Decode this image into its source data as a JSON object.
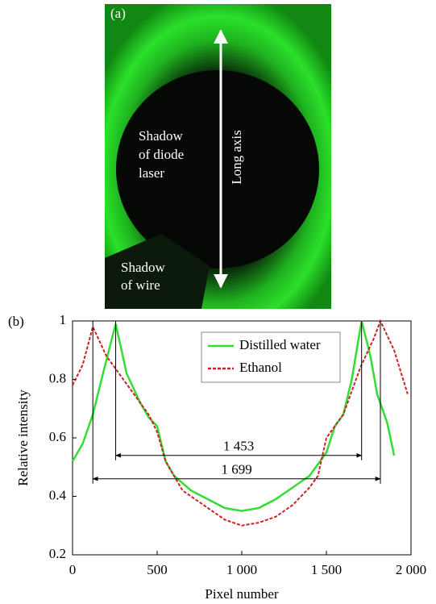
{
  "panel_a": {
    "label": "(a)",
    "laser_shadow": [
      "Shadow",
      "of diode",
      "laser"
    ],
    "axis_label": "Long axis",
    "wire_shadow": [
      "Shadow",
      "of wire"
    ]
  },
  "chart_data": {
    "type": "line",
    "label": "(b)",
    "x_label": "Pixel number",
    "y_label": "Relative intensity",
    "xlim": [
      0,
      2000
    ],
    "ylim": [
      0.2,
      1
    ],
    "xticks": [
      0,
      500,
      {
        "value": 1000,
        "label": "1 000"
      },
      {
        "value": 1500,
        "label": "1 500"
      },
      {
        "value": 2000,
        "label": "2 000"
      }
    ],
    "yticks": [
      0.2,
      0.4,
      0.6,
      0.8,
      1
    ],
    "grid": false,
    "legend": "upper-right",
    "series": [
      {
        "name": "Distilled water",
        "color": "#33dd33",
        "dash": false,
        "x": [
          0,
          60,
          120,
          180,
          255,
          320,
          400,
          450,
          500,
          550,
          600,
          700,
          800,
          900,
          1000,
          1100,
          1200,
          1300,
          1400,
          1500,
          1550,
          1600,
          1650,
          1708,
          1760,
          1800,
          1860,
          1900
        ],
        "values": [
          0.52,
          0.58,
          0.68,
          0.82,
          0.99,
          0.82,
          0.72,
          0.67,
          0.64,
          0.52,
          0.47,
          0.42,
          0.39,
          0.36,
          0.35,
          0.36,
          0.39,
          0.43,
          0.47,
          0.55,
          0.64,
          0.68,
          0.8,
          1.0,
          0.88,
          0.75,
          0.65,
          0.54
        ]
      },
      {
        "name": "Ethanol",
        "color": "#cc2222",
        "dash": true,
        "x": [
          0,
          60,
          120,
          200,
          300,
          400,
          450,
          500,
          550,
          650,
          800,
          900,
          1000,
          1100,
          1200,
          1300,
          1400,
          1450,
          1500,
          1600,
          1700,
          1780,
          1819,
          1900,
          1980
        ],
        "values": [
          0.78,
          0.85,
          0.98,
          0.88,
          0.8,
          0.72,
          0.68,
          0.62,
          0.52,
          0.42,
          0.36,
          0.32,
          0.3,
          0.31,
          0.33,
          0.37,
          0.43,
          0.47,
          0.6,
          0.68,
          0.84,
          0.94,
          1.0,
          0.9,
          0.75
        ]
      }
    ],
    "annotations": [
      {
        "text": "1 453",
        "x1": 255,
        "x2": 1708,
        "y": 0.54
      },
      {
        "text": "1 699",
        "x1": 120,
        "x2": 1819,
        "y": 0.46
      }
    ]
  }
}
